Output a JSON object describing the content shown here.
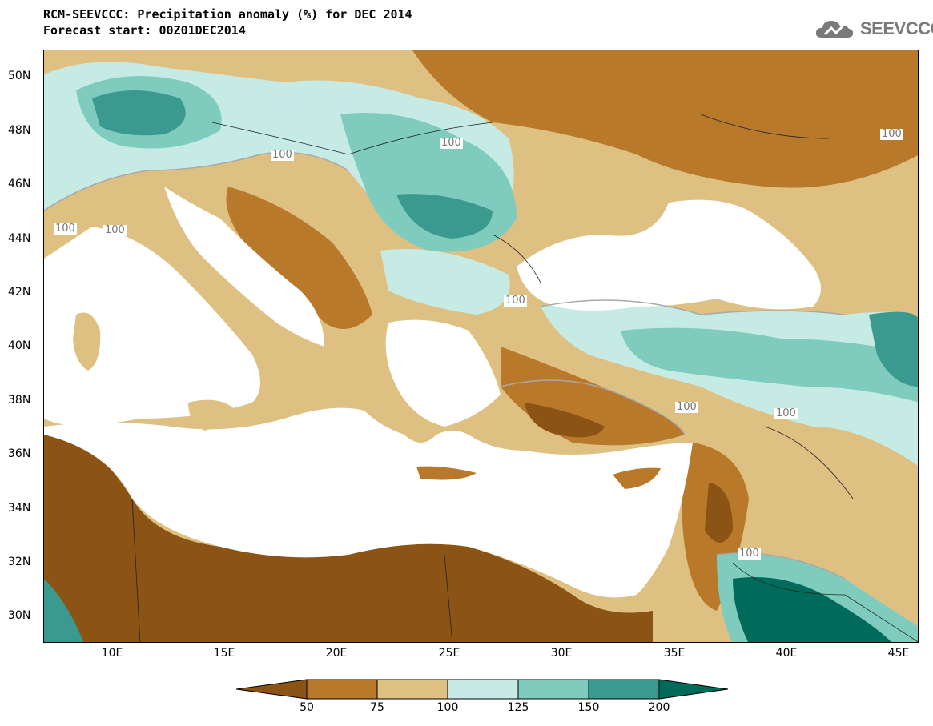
{
  "header": {
    "title_line1": "RCM-SEEVCCC: Precipitation anomaly (%) for DEC 2014",
    "title_line2": "Forecast start: 00Z01DEC2014"
  },
  "logo": {
    "text": "SEEVCCC",
    "icon": "cloud-logo-icon"
  },
  "axes": {
    "lat_labels": [
      "50N",
      "48N",
      "46N",
      "44N",
      "42N",
      "40N",
      "38N",
      "36N",
      "34N",
      "32N",
      "30N"
    ],
    "lon_labels": [
      "10E",
      "15E",
      "20E",
      "25E",
      "30E",
      "35E",
      "40E",
      "45E"
    ]
  },
  "contour_labels": [
    "100",
    "100",
    "100",
    "100",
    "100",
    "100",
    "100",
    "100",
    "100"
  ],
  "colorbar": {
    "levels": [
      "50",
      "75",
      "100",
      "125",
      "150",
      "200"
    ],
    "colors": [
      "#8b5314",
      "#b8792b",
      "#dfc083",
      "#c6ebe4",
      "#7fccbf",
      "#3b9a8f",
      "#006b5b"
    ]
  },
  "palette": {
    "very_dry": "#8b5314",
    "dry": "#b8792b",
    "slightly_dry": "#dfc083",
    "slightly_wet": "#c6ebe4",
    "wet": "#7fccbf",
    "very_wet": "#3b9a8f",
    "extreme_wet": "#006b5b",
    "sea": "#ffffff",
    "contour_line": "#a8a8a8"
  }
}
